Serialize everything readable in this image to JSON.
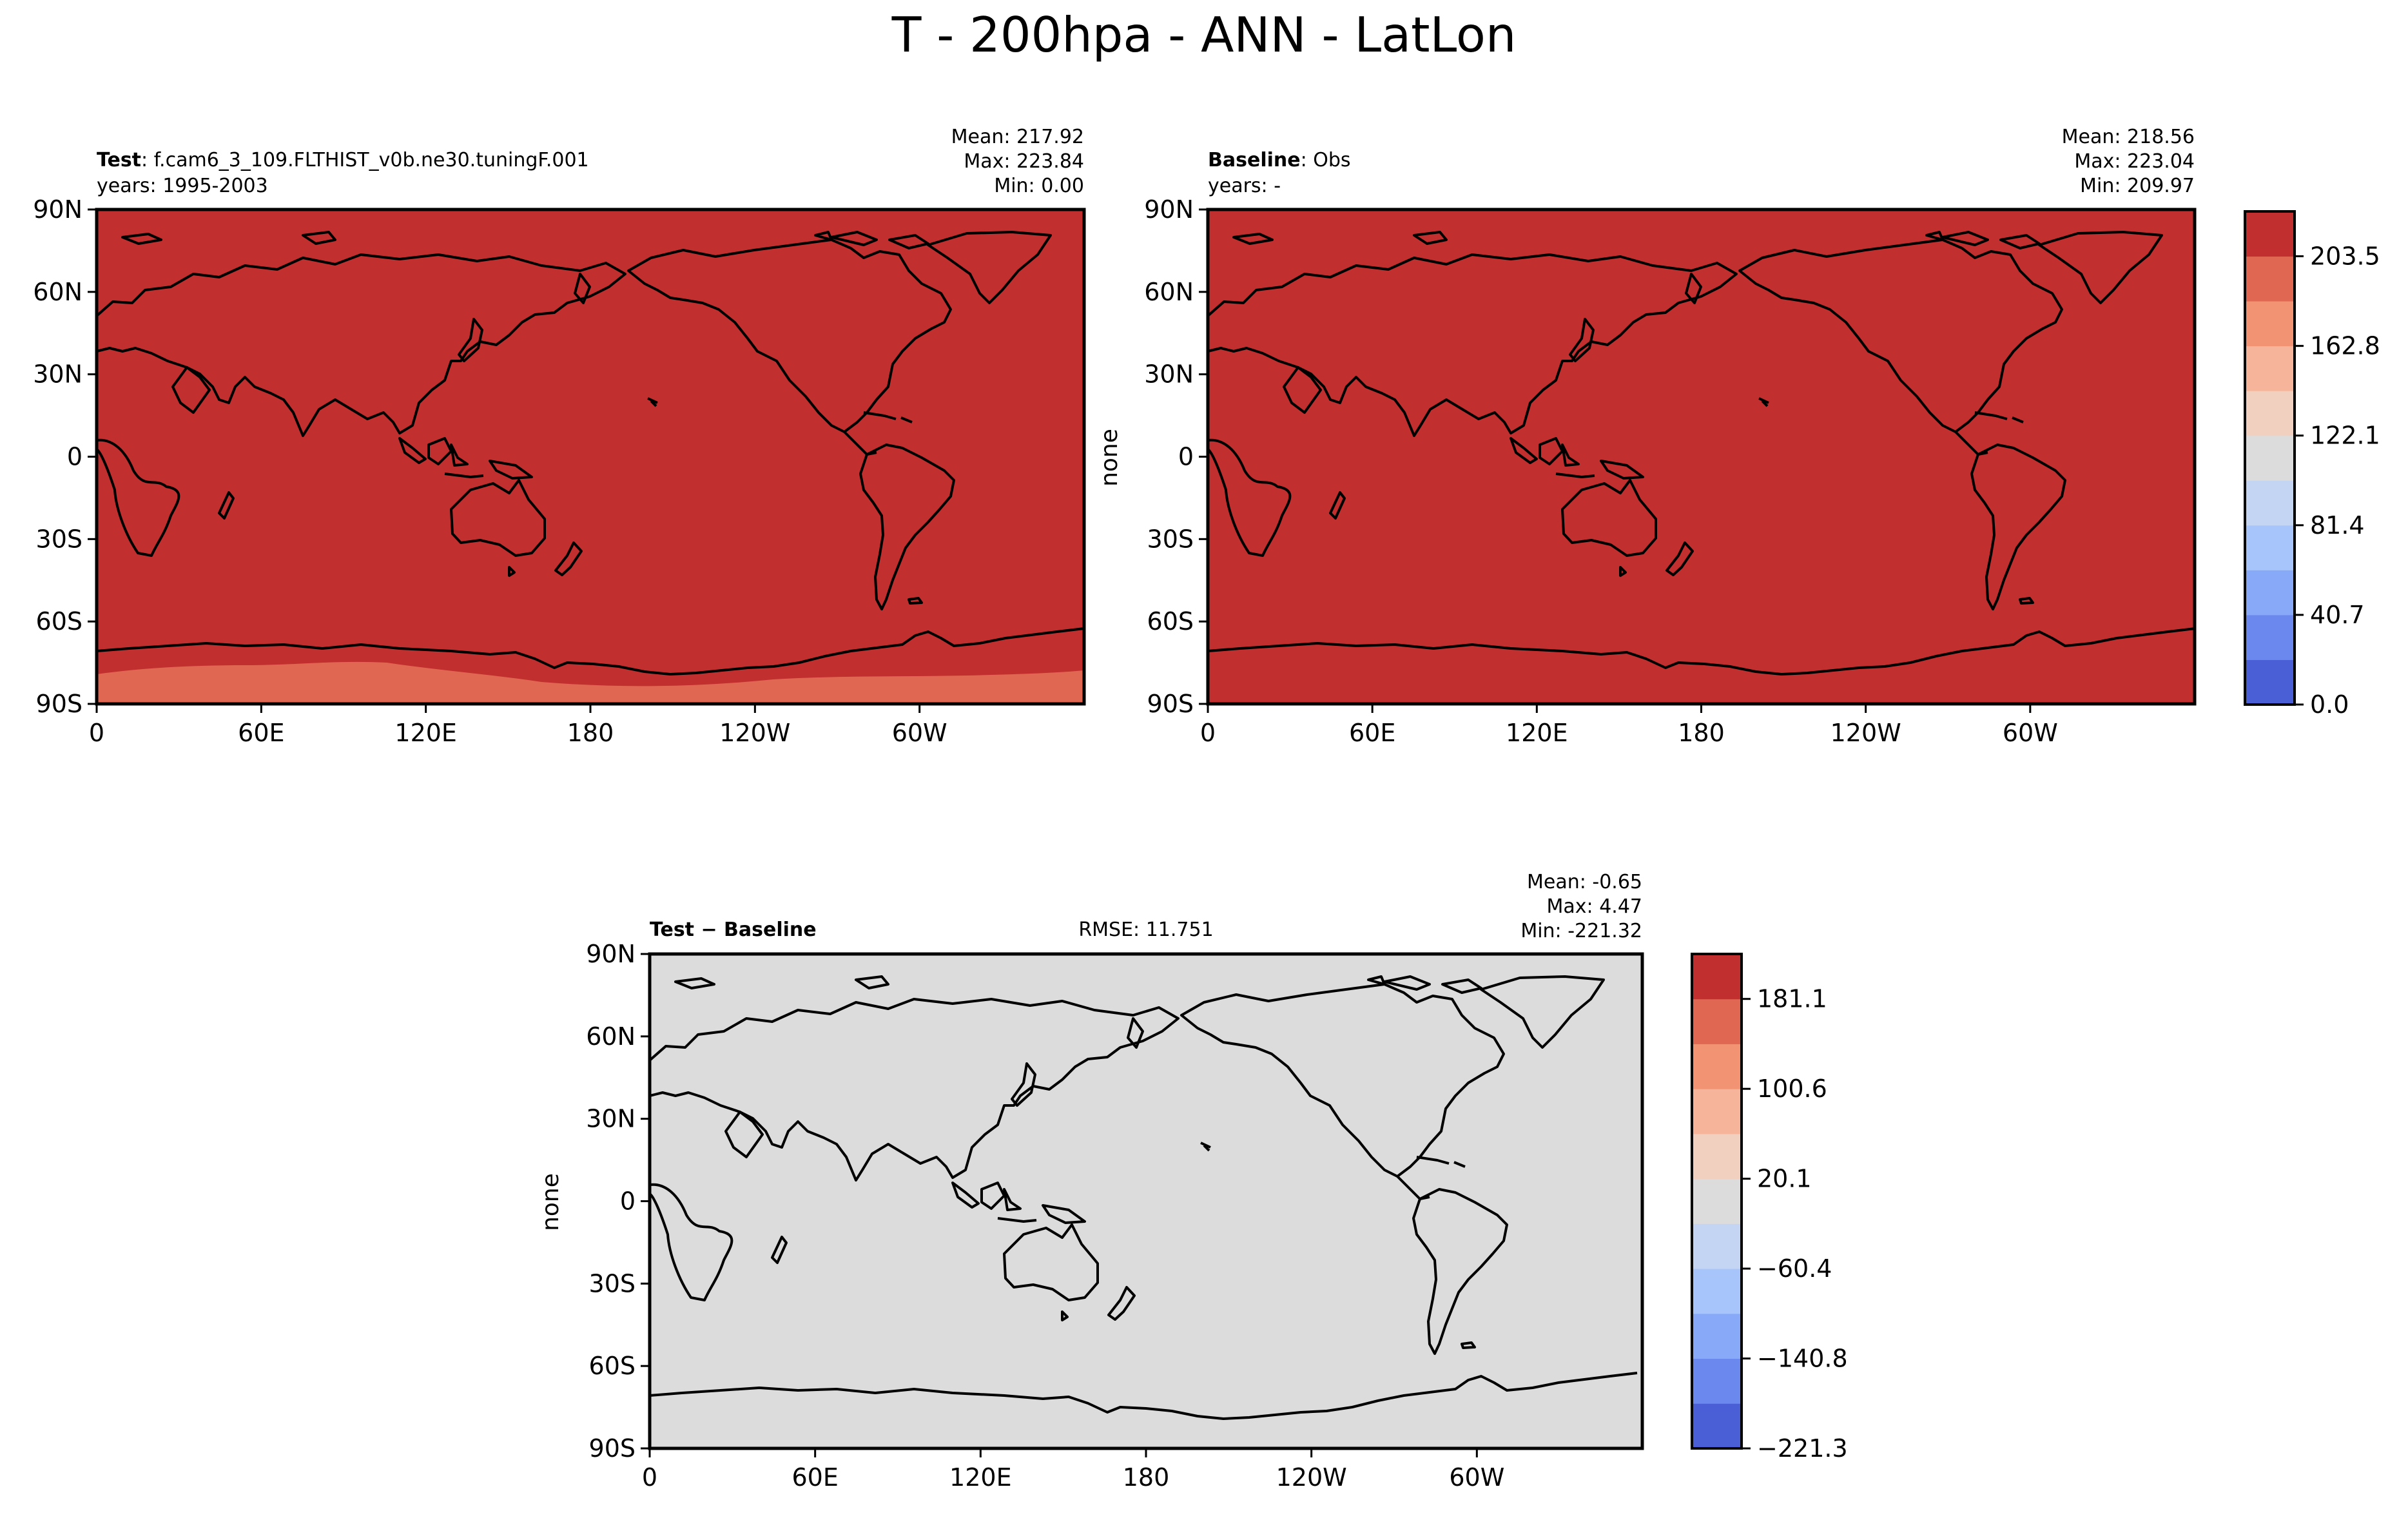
{
  "figure_title": "T - 200hpa - ANN - LatLon",
  "colors": {
    "cmap": [
      "#4a5fd6",
      "#6a88ee",
      "#87a9f8",
      "#a7c4fb",
      "#c4d5f3",
      "#dcdcdc",
      "#f1d0c0",
      "#f6b59a",
      "#f29474",
      "#e06852",
      "#c22f2f"
    ],
    "land_outline": "#000000"
  },
  "panels": {
    "test": {
      "label_bold": "Test",
      "label_text": ": f.cam6_3_109.FLTHIST_v0b.ne30.tuningF.001",
      "years": "years: 1995-2003",
      "stats": [
        "Mean: 217.92",
        "Max: 223.84",
        "Min:  0.00"
      ],
      "ylabel": ""
    },
    "baseline": {
      "label_bold": "Baseline",
      "label_text": ": Obs",
      "years": "years: -",
      "stats": [
        "Mean: 218.56",
        "Max: 223.04",
        "Min: 209.97"
      ],
      "ylabel": "none"
    },
    "diff": {
      "label_bold": "Test − Baseline",
      "rmse": "RMSE: 11.751",
      "stats": [
        "Mean: -0.65",
        "Max:  4.47",
        "Min: -221.32"
      ],
      "ylabel": "none"
    }
  },
  "colorbars": {
    "top": [
      "0.0",
      "40.7",
      "81.4",
      "122.1",
      "162.8",
      "203.5"
    ],
    "bottom": [
      "−221.3",
      "−140.8",
      "−60.4",
      "20.1",
      "100.6",
      "181.1"
    ]
  },
  "chart_data": [
    {
      "type": "heatmap",
      "panel": "test",
      "projection": "PlateCarree (central_longitude=180)",
      "x_ticks": [
        "0",
        "60E",
        "120E",
        "180",
        "120W",
        "60W"
      ],
      "y_ticks": [
        "90N",
        "60N",
        "30N",
        "0",
        "30S",
        "60S",
        "90S"
      ],
      "xlim": [
        0,
        360
      ],
      "ylim": [
        -90,
        90
      ],
      "levels_min": 0.0,
      "levels_max": 223.84,
      "fill": [
        {
          "region": "global",
          "level_bin": 10
        },
        {
          "region": "south of ~80S",
          "level_bin": 9
        }
      ]
    },
    {
      "type": "heatmap",
      "panel": "baseline",
      "projection": "PlateCarree (central_longitude=180)",
      "x_ticks": [
        "0",
        "60E",
        "120E",
        "180",
        "120W",
        "60W"
      ],
      "y_ticks": [
        "90N",
        "60N",
        "30N",
        "0",
        "30S",
        "60S",
        "90S"
      ],
      "xlim": [
        0,
        360
      ],
      "ylim": [
        -90,
        90
      ],
      "fill": [
        {
          "region": "global",
          "level_bin": 10
        }
      ]
    },
    {
      "type": "heatmap",
      "panel": "diff",
      "projection": "PlateCarree (central_longitude=180)",
      "x_ticks": [
        "0",
        "60E",
        "120E",
        "180",
        "120W",
        "60W"
      ],
      "y_ticks": [
        "90N",
        "60N",
        "30N",
        "0",
        "30S",
        "60S",
        "90S"
      ],
      "xlim": [
        0,
        360
      ],
      "ylim": [
        -90,
        90
      ],
      "fill": [
        {
          "region": "global",
          "level_bin": 5
        }
      ]
    }
  ]
}
